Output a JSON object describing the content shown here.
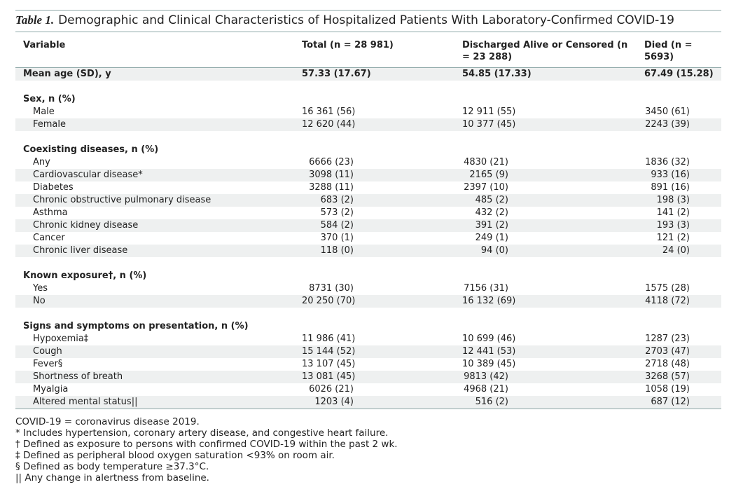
{
  "title": {
    "label": "Table 1.",
    "text": "Demographic and Clinical Characteristics of Hospitalized Patients With Laboratory-Confirmed COVID-19"
  },
  "table": {
    "columns": [
      "Variable",
      "Total (n = 28 981)",
      "Discharged Alive or Censored (n = 23 288)",
      "Died (n = 5693)"
    ],
    "summary_row": [
      "Mean age (SD), y",
      "57.33 (17.67)",
      "54.85 (17.33)",
      "67.49 (15.28)"
    ],
    "sections": [
      {
        "title": "Sex, n (%)",
        "rows": [
          [
            "Male",
            "16 361 (56)",
            "12 911 (55)",
            "3450 (61)"
          ],
          [
            "Female",
            "12 620 (44)",
            "10 377 (45)",
            "2243 (39)"
          ]
        ]
      },
      {
        "title": "Coexisting diseases, n (%)",
        "rows": [
          [
            "Any",
            "6666 (23)",
            "4830 (21)",
            "1836 (32)"
          ],
          [
            "Cardiovascular disease*",
            "3098 (11)",
            "2165 (9)",
            "933 (16)"
          ],
          [
            "Diabetes",
            "3288 (11)",
            "2397 (10)",
            "891 (16)"
          ],
          [
            "Chronic obstructive pulmonary disease",
            "683 (2)",
            "485 (2)",
            "198 (3)"
          ],
          [
            "Asthma",
            "573 (2)",
            "432 (2)",
            "141 (2)"
          ],
          [
            "Chronic kidney disease",
            "584 (2)",
            "391 (2)",
            "193 (3)"
          ],
          [
            "Cancer",
            "370 (1)",
            "249 (1)",
            "121 (2)"
          ],
          [
            "Chronic liver disease",
            "118 (0)",
            "94 (0)",
            "24 (0)"
          ]
        ]
      },
      {
        "title": "Known exposure†, n (%)",
        "rows": [
          [
            "Yes",
            "8731 (30)",
            "7156 (31)",
            "1575 (28)"
          ],
          [
            "No",
            "20 250 (70)",
            "16 132 (69)",
            "4118 (72)"
          ]
        ]
      },
      {
        "title": "Signs and symptoms on presentation, n (%)",
        "rows": [
          [
            "Hypoxemia‡",
            "11 986 (41)",
            "10 699 (46)",
            "1287 (23)"
          ],
          [
            "Cough",
            "15 144 (52)",
            "12 441 (53)",
            "2703 (47)"
          ],
          [
            "Fever§",
            "13 107 (45)",
            "10 389 (45)",
            "2718 (48)"
          ],
          [
            "Shortness of breath",
            "13 081 (45)",
            "9813 (42)",
            "3268 (57)"
          ],
          [
            "Myalgia",
            "6026 (21)",
            "4968 (21)",
            "1058 (19)"
          ],
          [
            "Altered mental status||",
            "1203 (4)",
            "516 (2)",
            "687 (12)"
          ]
        ]
      }
    ]
  },
  "footnotes": [
    "COVID-19 = coronavirus disease 2019.",
    "* Includes hypertension, coronary artery disease, and congestive heart failure.",
    "† Defined as exposure to persons with confirmed COVID-19 within the past 2 wk.",
    "‡ Defined as peripheral blood oxygen saturation <93% on room air.",
    "§ Defined as body temperature ≥37.3°C.",
    "|| Any change in alertness from baseline."
  ]
}
